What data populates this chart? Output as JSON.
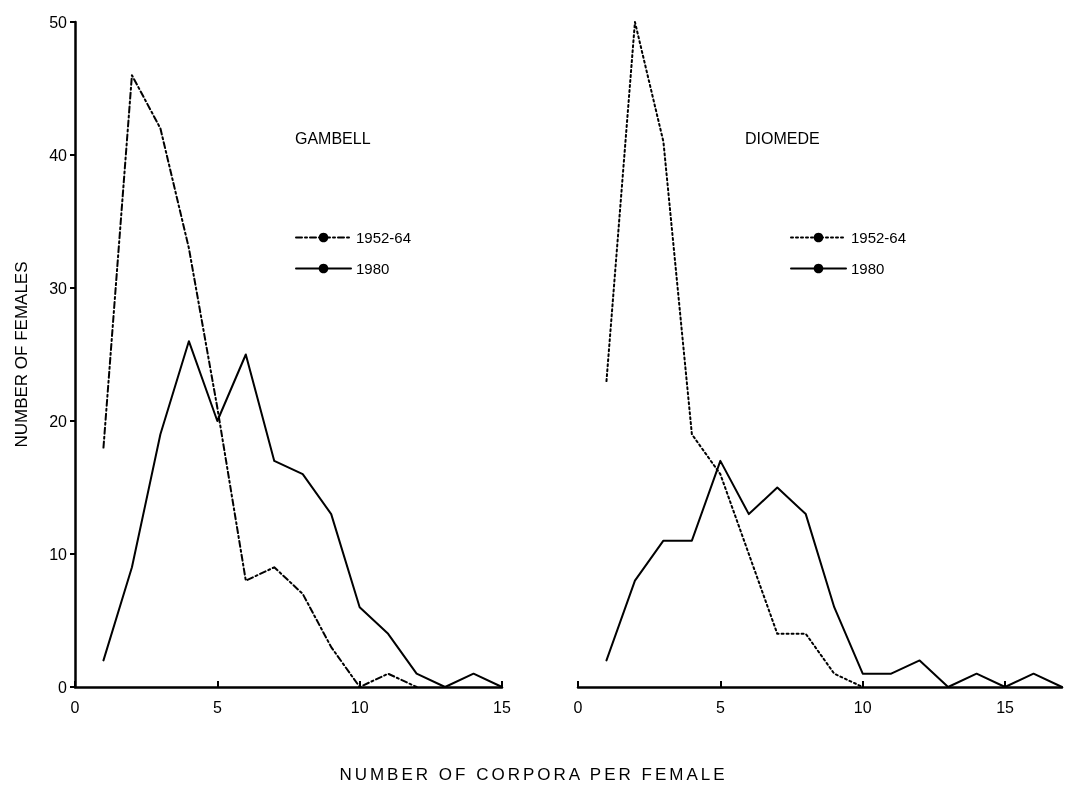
{
  "chart_data": [
    {
      "type": "line",
      "title": "GAMBELL",
      "xlabel": "NUMBER OF CORPORA PER FEMALE",
      "ylabel": "NUMBER OF FEMALES",
      "xlim": [
        0,
        15
      ],
      "xticks": [
        0,
        5,
        10,
        15
      ],
      "ylim": [
        0,
        50
      ],
      "yticks": [
        0,
        10,
        20,
        30,
        40,
        50
      ],
      "grid": false,
      "legend": "top right",
      "marker": "none",
      "series": [
        {
          "name": "1952-64",
          "color": "#000000",
          "line_style": "dashed",
          "x": [
            1,
            2,
            3,
            4,
            5,
            6,
            7,
            8,
            9,
            10,
            11,
            12
          ],
          "values": [
            18,
            46,
            42,
            33,
            21,
            8,
            9,
            7,
            3,
            0,
            1,
            0
          ]
        },
        {
          "name": "1980",
          "color": "#000000",
          "line_style": "solid",
          "x": [
            1,
            2,
            3,
            4,
            5,
            6,
            7,
            8,
            9,
            10,
            11,
            12,
            13,
            14,
            15
          ],
          "values": [
            2,
            9,
            19,
            26,
            20,
            25,
            17,
            16,
            13,
            6,
            4,
            1,
            0,
            1,
            0
          ]
        }
      ]
    },
    {
      "type": "line",
      "title": "DIOMEDE",
      "xlim": [
        0,
        17
      ],
      "xticks": [
        0,
        5,
        10,
        15
      ],
      "ylim": [
        0,
        50
      ],
      "tick_labels": "x",
      "grid": false,
      "legend": "top right",
      "marker": "none",
      "series": [
        {
          "name": "1952-64",
          "color": "#000000",
          "line_style": "dotted",
          "x": [
            1,
            2,
            3,
            4,
            5,
            6,
            7,
            8,
            9,
            10
          ],
          "values": [
            23,
            50,
            41,
            19,
            16,
            10,
            4,
            4,
            1,
            0
          ]
        },
        {
          "name": "1980",
          "color": "#000000",
          "line_style": "solid",
          "x": [
            1,
            2,
            3,
            4,
            5,
            6,
            7,
            8,
            9,
            10,
            11,
            12,
            13,
            14,
            15,
            16,
            17
          ],
          "values": [
            2,
            8,
            11,
            11,
            17,
            13,
            15,
            13,
            6,
            1,
            1,
            2,
            0,
            1,
            0,
            1,
            0
          ]
        }
      ]
    }
  ]
}
